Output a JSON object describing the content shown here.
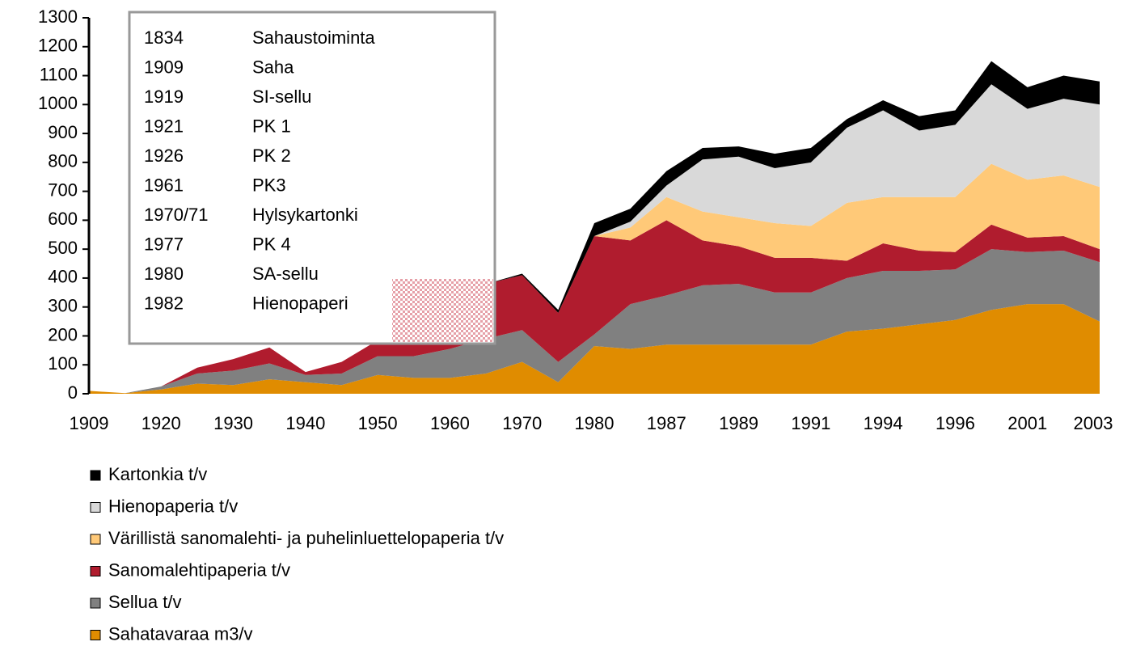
{
  "chart_data": {
    "type": "stacked_area",
    "categories": [
      "1909",
      null,
      "1920",
      null,
      "1930",
      null,
      "1940",
      null,
      "1950",
      null,
      "1960",
      null,
      "1970",
      null,
      "1980",
      null,
      "1987",
      null,
      "1989",
      null,
      "1991",
      null,
      "1994",
      null,
      "1996",
      null,
      "2001",
      null,
      "2003"
    ],
    "series": [
      {
        "name": "Sahatavaraa m3/v",
        "color": "#e08c00",
        "values": [
          10,
          2,
          15,
          35,
          30,
          50,
          40,
          30,
          65,
          55,
          55,
          70,
          110,
          40,
          165,
          155,
          170,
          170,
          170,
          170,
          170,
          215,
          225,
          240,
          255,
          290,
          310,
          310,
          250
        ]
      },
      {
        "name": "Sellua t/v",
        "color": "#808080",
        "values": [
          0,
          0,
          10,
          35,
          50,
          55,
          25,
          40,
          65,
          75,
          100,
          120,
          110,
          70,
          40,
          155,
          170,
          205,
          210,
          180,
          180,
          185,
          200,
          185,
          175,
          210,
          180,
          185,
          205
        ]
      },
      {
        "name": "Sanomalehtipaperia t/v",
        "color": "#b01c2e",
        "values": [
          0,
          0,
          0,
          20,
          40,
          55,
          10,
          40,
          55,
          100,
          135,
          190,
          190,
          170,
          340,
          220,
          260,
          155,
          130,
          120,
          120,
          60,
          95,
          70,
          60,
          85,
          50,
          50,
          45
        ]
      },
      {
        "name": "Värillistä sanomalehti- ja puhelinluettelopaperia t/v",
        "color": "#ffc978",
        "values": [
          0,
          0,
          0,
          0,
          0,
          0,
          0,
          0,
          0,
          0,
          0,
          0,
          0,
          0,
          0,
          45,
          80,
          100,
          100,
          120,
          110,
          200,
          160,
          185,
          190,
          210,
          200,
          210,
          215
        ]
      },
      {
        "name": "Hienopaperia t/v",
        "color": "#d9d9d9",
        "values": [
          0,
          0,
          0,
          0,
          0,
          0,
          0,
          0,
          0,
          0,
          0,
          0,
          0,
          0,
          0,
          20,
          40,
          180,
          210,
          190,
          220,
          260,
          300,
          230,
          250,
          275,
          245,
          265,
          285
        ]
      },
      {
        "name": "Kartonkia t/v",
        "color": "#000000",
        "values": [
          0,
          0,
          0,
          0,
          0,
          0,
          0,
          0,
          0,
          0,
          0,
          0,
          5,
          10,
          45,
          45,
          50,
          40,
          35,
          50,
          50,
          30,
          35,
          50,
          50,
          80,
          75,
          80,
          80
        ]
      }
    ],
    "ylim": [
      0,
      1300
    ],
    "yticks": [
      0,
      100,
      200,
      300,
      400,
      500,
      600,
      700,
      800,
      900,
      1000,
      1100,
      1200,
      1300
    ],
    "annotation_table": [
      [
        "1834",
        "Sahaustoiminta"
      ],
      [
        "1909",
        "Saha"
      ],
      [
        "1919",
        "SI-sellu"
      ],
      [
        "1921",
        "PK 1"
      ],
      [
        "1926",
        "PK 2"
      ],
      [
        "1961",
        "PK3"
      ],
      [
        "1970/71",
        "Hylsykartonki"
      ],
      [
        "1977",
        "PK 4"
      ],
      [
        "1980",
        "SA-sellu"
      ],
      [
        "1982",
        "Hienopaperi"
      ]
    ]
  }
}
